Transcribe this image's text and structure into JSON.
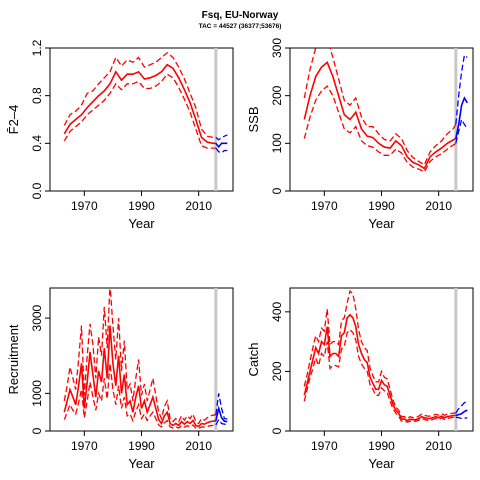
{
  "header": {
    "title": "Fsq, EU-Norway",
    "subtitle": "TAC = 44527 (36377;53676)"
  },
  "colors": {
    "history": "#ff0000",
    "projection": "#0000ff",
    "divider": "#c8c8c8"
  },
  "chart_data": [
    {
      "type": "line",
      "xlabel": "Year",
      "ylabel": "F̄2–4",
      "xlim": [
        1958,
        2022
      ],
      "ylim": [
        0,
        1.2
      ],
      "xticks": [
        1970,
        1990,
        2010
      ],
      "yticks": [
        0.0,
        0.4,
        0.8,
        1.2
      ],
      "ytick_labels": [
        "0.0",
        "0.4",
        "0.8",
        "1.2"
      ],
      "divider_year": 2016,
      "history": {
        "x": [
          1963,
          1965,
          1967,
          1969,
          1971,
          1973,
          1975,
          1977,
          1979,
          1981,
          1983,
          1985,
          1987,
          1989,
          1991,
          1993,
          1995,
          1997,
          1999,
          2001,
          2003,
          2005,
          2007,
          2009,
          2011,
          2013,
          2015,
          2016
        ],
        "value": [
          0.48,
          0.56,
          0.6,
          0.64,
          0.7,
          0.75,
          0.8,
          0.84,
          0.9,
          1.0,
          0.93,
          0.98,
          0.98,
          1.0,
          0.94,
          0.95,
          0.97,
          1.0,
          1.06,
          1.03,
          0.95,
          0.85,
          0.74,
          0.6,
          0.45,
          0.41,
          0.4,
          0.4
        ],
        "lower": [
          0.42,
          0.5,
          0.54,
          0.58,
          0.64,
          0.68,
          0.72,
          0.76,
          0.82,
          0.9,
          0.85,
          0.9,
          0.9,
          0.92,
          0.86,
          0.86,
          0.88,
          0.92,
          0.98,
          0.95,
          0.87,
          0.77,
          0.66,
          0.52,
          0.38,
          0.36,
          0.36,
          0.36
        ],
        "upper": [
          0.55,
          0.64,
          0.67,
          0.72,
          0.82,
          0.84,
          0.9,
          0.95,
          1.0,
          1.12,
          1.05,
          1.1,
          1.08,
          1.12,
          1.04,
          1.06,
          1.08,
          1.12,
          1.16,
          1.12,
          1.04,
          0.94,
          0.82,
          0.7,
          0.52,
          0.46,
          0.45,
          0.45
        ]
      },
      "projection": {
        "x": [
          2016,
          2017,
          2018,
          2019,
          2020
        ],
        "value": [
          0.4,
          0.37,
          0.4,
          0.4,
          0.4
        ],
        "lower": [
          0.36,
          0.33,
          0.32,
          0.34,
          0.34
        ],
        "upper": [
          0.45,
          0.43,
          0.45,
          0.46,
          0.47
        ]
      }
    },
    {
      "type": "line",
      "xlabel": "Year",
      "ylabel": "SSB",
      "xlim": [
        1958,
        2022
      ],
      "ylim": [
        0,
        300
      ],
      "xticks": [
        1970,
        1990,
        2010
      ],
      "yticks": [
        0,
        100,
        200,
        300
      ],
      "ytick_labels": [
        "0",
        "100",
        "200",
        "300"
      ],
      "divider_year": 2016,
      "history": {
        "x": [
          1963,
          1965,
          1967,
          1969,
          1971,
          1973,
          1975,
          1977,
          1979,
          1981,
          1983,
          1985,
          1987,
          1989,
          1991,
          1993,
          1995,
          1997,
          1999,
          2001,
          2003,
          2005,
          2007,
          2009,
          2011,
          2013,
          2015,
          2016
        ],
        "value": [
          150,
          200,
          240,
          260,
          270,
          240,
          200,
          160,
          150,
          165,
          130,
          115,
          112,
          100,
          92,
          90,
          105,
          95,
          72,
          60,
          55,
          47,
          72,
          82,
          90,
          100,
          107,
          110
        ],
        "lower": [
          110,
          155,
          190,
          210,
          220,
          200,
          165,
          130,
          122,
          135,
          105,
          95,
          92,
          82,
          75,
          75,
          88,
          80,
          60,
          50,
          46,
          40,
          62,
          72,
          78,
          88,
          96,
          100
        ],
        "upper": [
          195,
          255,
          300,
          305,
          320,
          280,
          235,
          190,
          180,
          195,
          155,
          135,
          135,
          120,
          108,
          105,
          120,
          110,
          85,
          70,
          62,
          55,
          82,
          95,
          105,
          120,
          130,
          140
        ]
      },
      "projection": {
        "x": [
          2016,
          2017,
          2018,
          2019,
          2020
        ],
        "value": [
          110,
          140,
          180,
          195,
          185
        ],
        "lower": [
          100,
          125,
          150,
          140,
          130
        ],
        "upper": [
          140,
          200,
          250,
          285,
          280
        ]
      }
    },
    {
      "type": "line",
      "xlabel": "Year",
      "ylabel": "Recruitment",
      "xlim": [
        1958,
        2022
      ],
      "ylim": [
        0,
        3800
      ],
      "xticks": [
        1970,
        1990,
        2010
      ],
      "yticks": [
        0,
        1000,
        3000
      ],
      "ytick_labels": [
        "0",
        "1000",
        "3000"
      ],
      "divider_year": 2016,
      "history": {
        "x": [
          1963,
          1964,
          1965,
          1966,
          1967,
          1968,
          1969,
          1970,
          1971,
          1972,
          1973,
          1974,
          1975,
          1976,
          1977,
          1978,
          1979,
          1980,
          1981,
          1982,
          1983,
          1984,
          1985,
          1986,
          1987,
          1988,
          1989,
          1990,
          1991,
          1992,
          1993,
          1994,
          1995,
          1996,
          1997,
          1998,
          1999,
          2000,
          2001,
          2002,
          2003,
          2004,
          2005,
          2006,
          2007,
          2008,
          2009,
          2010,
          2011,
          2012,
          2013,
          2014,
          2015,
          2016
        ],
        "value": [
          500,
          800,
          1100,
          900,
          700,
          1200,
          1800,
          600,
          1300,
          2100,
          1500,
          900,
          1600,
          1300,
          2200,
          1400,
          2800,
          1800,
          1200,
          2000,
          1000,
          1500,
          700,
          800,
          500,
          900,
          1200,
          600,
          800,
          500,
          700,
          900,
          600,
          300,
          200,
          400,
          500,
          200,
          150,
          200,
          150,
          250,
          180,
          250,
          200,
          280,
          150,
          120,
          200,
          180,
          220,
          250,
          260,
          270
        ],
        "lower": [
          300,
          500,
          700,
          550,
          450,
          750,
          1100,
          350,
          800,
          1300,
          900,
          550,
          1000,
          800,
          1400,
          850,
          1800,
          1100,
          700,
          1200,
          600,
          900,
          400,
          450,
          280,
          520,
          700,
          330,
          450,
          280,
          400,
          500,
          330,
          160,
          110,
          220,
          280,
          110,
          80,
          110,
          80,
          140,
          100,
          140,
          110,
          160,
          80,
          65,
          110,
          100,
          120,
          140,
          150,
          160
        ],
        "upper": [
          800,
          1200,
          1700,
          1400,
          1100,
          1900,
          2800,
          950,
          2000,
          2850,
          2300,
          1400,
          2500,
          2000,
          3300,
          2200,
          3900,
          2800,
          1900,
          3000,
          1600,
          2400,
          1100,
          1250,
          800,
          1400,
          1900,
          950,
          1250,
          800,
          1100,
          1400,
          950,
          500,
          330,
          650,
          800,
          330,
          250,
          330,
          250,
          400,
          290,
          400,
          330,
          450,
          250,
          200,
          330,
          290,
          350,
          400,
          420,
          430
        ]
      },
      "projection": {
        "x": [
          2016,
          2017,
          2018,
          2019,
          2020
        ],
        "value": [
          270,
          600,
          350,
          260,
          250
        ],
        "lower": [
          160,
          300,
          200,
          180,
          175
        ],
        "upper": [
          430,
          1000,
          600,
          330,
          320
        ]
      }
    },
    {
      "type": "line",
      "xlabel": "Year",
      "ylabel": "Catch",
      "xlim": [
        1958,
        2022
      ],
      "ylim": [
        0,
        480
      ],
      "xticks": [
        1970,
        1990,
        2010
      ],
      "yticks": [
        0,
        200,
        400
      ],
      "ytick_labels": [
        "0",
        "200",
        "400"
      ],
      "divider_year": 2016,
      "history": {
        "x": [
          1963,
          1964,
          1965,
          1966,
          1967,
          1968,
          1969,
          1970,
          1971,
          1972,
          1973,
          1974,
          1975,
          1976,
          1977,
          1978,
          1979,
          1980,
          1981,
          1982,
          1983,
          1984,
          1985,
          1986,
          1987,
          1988,
          1989,
          1990,
          1991,
          1992,
          1993,
          1994,
          1995,
          1996,
          1997,
          1998,
          1999,
          2000,
          2001,
          2002,
          2003,
          2004,
          2005,
          2006,
          2007,
          2008,
          2009,
          2010,
          2011,
          2012,
          2013,
          2014,
          2015,
          2016
        ],
        "value": [
          120,
          160,
          200,
          240,
          280,
          260,
          300,
          290,
          350,
          250,
          260,
          260,
          250,
          320,
          330,
          380,
          390,
          380,
          350,
          290,
          260,
          240,
          230,
          180,
          160,
          140,
          140,
          170,
          155,
          150,
          120,
          90,
          70,
          60,
          40,
          40,
          35,
          40,
          38,
          38,
          42,
          48,
          45,
          42,
          42,
          45,
          48,
          45,
          50,
          45,
          48,
          50,
          52,
          52
        ],
        "lower": [
          100,
          140,
          180,
          210,
          245,
          220,
          260,
          250,
          300,
          210,
          220,
          220,
          215,
          275,
          285,
          330,
          340,
          330,
          305,
          250,
          225,
          210,
          200,
          155,
          140,
          120,
          120,
          145,
          135,
          130,
          100,
          75,
          60,
          50,
          33,
          33,
          30,
          33,
          33,
          33,
          36,
          42,
          39,
          36,
          36,
          39,
          42,
          39,
          44,
          39,
          42,
          44,
          46,
          46
        ],
        "upper": [
          150,
          190,
          235,
          280,
          320,
          300,
          345,
          335,
          410,
          290,
          300,
          300,
          290,
          370,
          380,
          430,
          470,
          460,
          410,
          340,
          300,
          280,
          270,
          210,
          185,
          165,
          165,
          200,
          180,
          175,
          140,
          105,
          80,
          70,
          48,
          48,
          42,
          48,
          45,
          45,
          50,
          56,
          53,
          50,
          50,
          53,
          56,
          53,
          58,
          53,
          56,
          58,
          60,
          60
        ]
      },
      "projection": {
        "x": [
          2016,
          2017,
          2018,
          2019,
          2020
        ],
        "value": [
          52,
          55,
          58,
          65,
          70
        ],
        "lower": [
          46,
          45,
          42,
          42,
          45
        ],
        "upper": [
          60,
          75,
          85,
          95,
          100
        ]
      }
    }
  ]
}
